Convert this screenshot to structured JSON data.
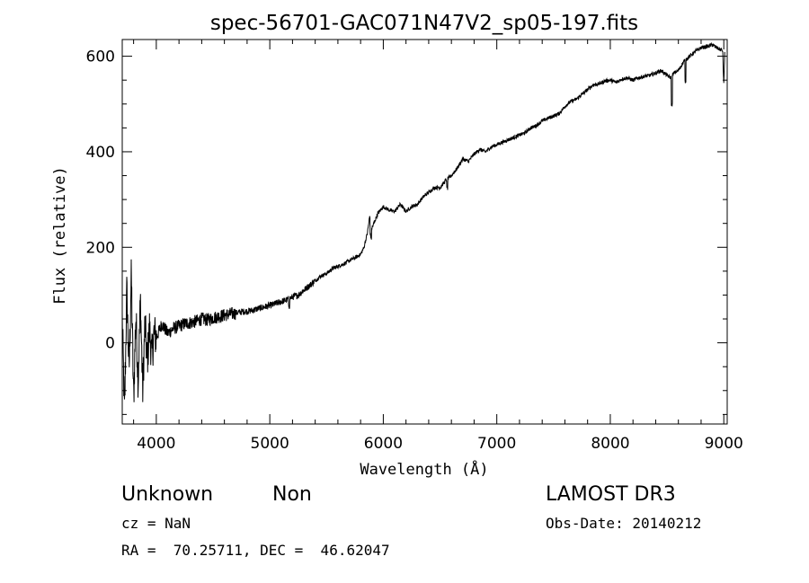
{
  "chart_data": {
    "type": "line",
    "title": "spec-56701-GAC071N47V2_sp05-197.fits",
    "xlabel": "Wavelength (Å)",
    "ylabel": "Flux (relative)",
    "xlim": [
      3700,
      9030
    ],
    "ylim": [
      -170,
      635
    ],
    "xticks": [
      4000,
      5000,
      6000,
      7000,
      8000,
      9000
    ],
    "yticks": [
      0,
      200,
      400,
      600
    ],
    "grid": false,
    "series": [
      {
        "color": "#000000",
        "x": [
          3700,
          3720,
          3740,
          3760,
          3780,
          3800,
          3820,
          3840,
          3860,
          3880,
          3900,
          3920,
          3940,
          3960,
          3980,
          4000,
          4050,
          4100,
          4150,
          4200,
          4250,
          4300,
          4350,
          4400,
          4450,
          4500,
          4550,
          4600,
          4650,
          4700,
          4750,
          4800,
          4850,
          4900,
          4950,
          5000,
          5050,
          5100,
          5150,
          5200,
          5250,
          5300,
          5350,
          5400,
          5450,
          5500,
          5550,
          5600,
          5650,
          5700,
          5750,
          5800,
          5830,
          5860,
          5880,
          5900,
          5950,
          6000,
          6050,
          6100,
          6150,
          6200,
          6250,
          6300,
          6350,
          6400,
          6450,
          6500,
          6550,
          6600,
          6650,
          6700,
          6750,
          6800,
          6850,
          6900,
          6950,
          7000,
          7050,
          7100,
          7150,
          7200,
          7250,
          7300,
          7350,
          7400,
          7450,
          7500,
          7550,
          7600,
          7650,
          7700,
          7750,
          7800,
          7850,
          7900,
          7950,
          8000,
          8050,
          8100,
          8150,
          8200,
          8250,
          8300,
          8350,
          8400,
          8450,
          8500,
          8530,
          8560,
          8600,
          8650,
          8700,
          8750,
          8800,
          8850,
          8900,
          8950,
          8990,
          9000,
          9010
        ],
        "y": [
          50,
          -150,
          110,
          -60,
          140,
          -120,
          60,
          -80,
          90,
          -100,
          40,
          -40,
          30,
          -30,
          20,
          10,
          40,
          20,
          30,
          35,
          40,
          42,
          45,
          50,
          48,
          52,
          55,
          58,
          60,
          62,
          65,
          66,
          68,
          72,
          75,
          78,
          82,
          86,
          90,
          96,
          100,
          110,
          120,
          130,
          140,
          145,
          155,
          160,
          165,
          172,
          178,
          185,
          200,
          230,
          265,
          240,
          270,
          285,
          278,
          275,
          290,
          275,
          285,
          290,
          305,
          315,
          325,
          325,
          340,
          350,
          365,
          385,
          380,
          395,
          405,
          400,
          410,
          415,
          420,
          425,
          430,
          435,
          440,
          450,
          455,
          465,
          470,
          475,
          480,
          495,
          505,
          510,
          520,
          530,
          540,
          542,
          548,
          550,
          545,
          552,
          555,
          550,
          555,
          558,
          560,
          565,
          570,
          560,
          555,
          565,
          570,
          590,
          600,
          610,
          618,
          620,
          624,
          616,
          612,
          540,
          620
        ]
      }
    ]
  },
  "info": {
    "class_label": "Unknown",
    "subclass_label": "Non",
    "cz_line": "cz = NaN",
    "radec_line": "RA =  70.25711, DEC =  46.62047",
    "survey": "LAMOST DR3",
    "obs_date": "Obs-Date: 20140212"
  }
}
